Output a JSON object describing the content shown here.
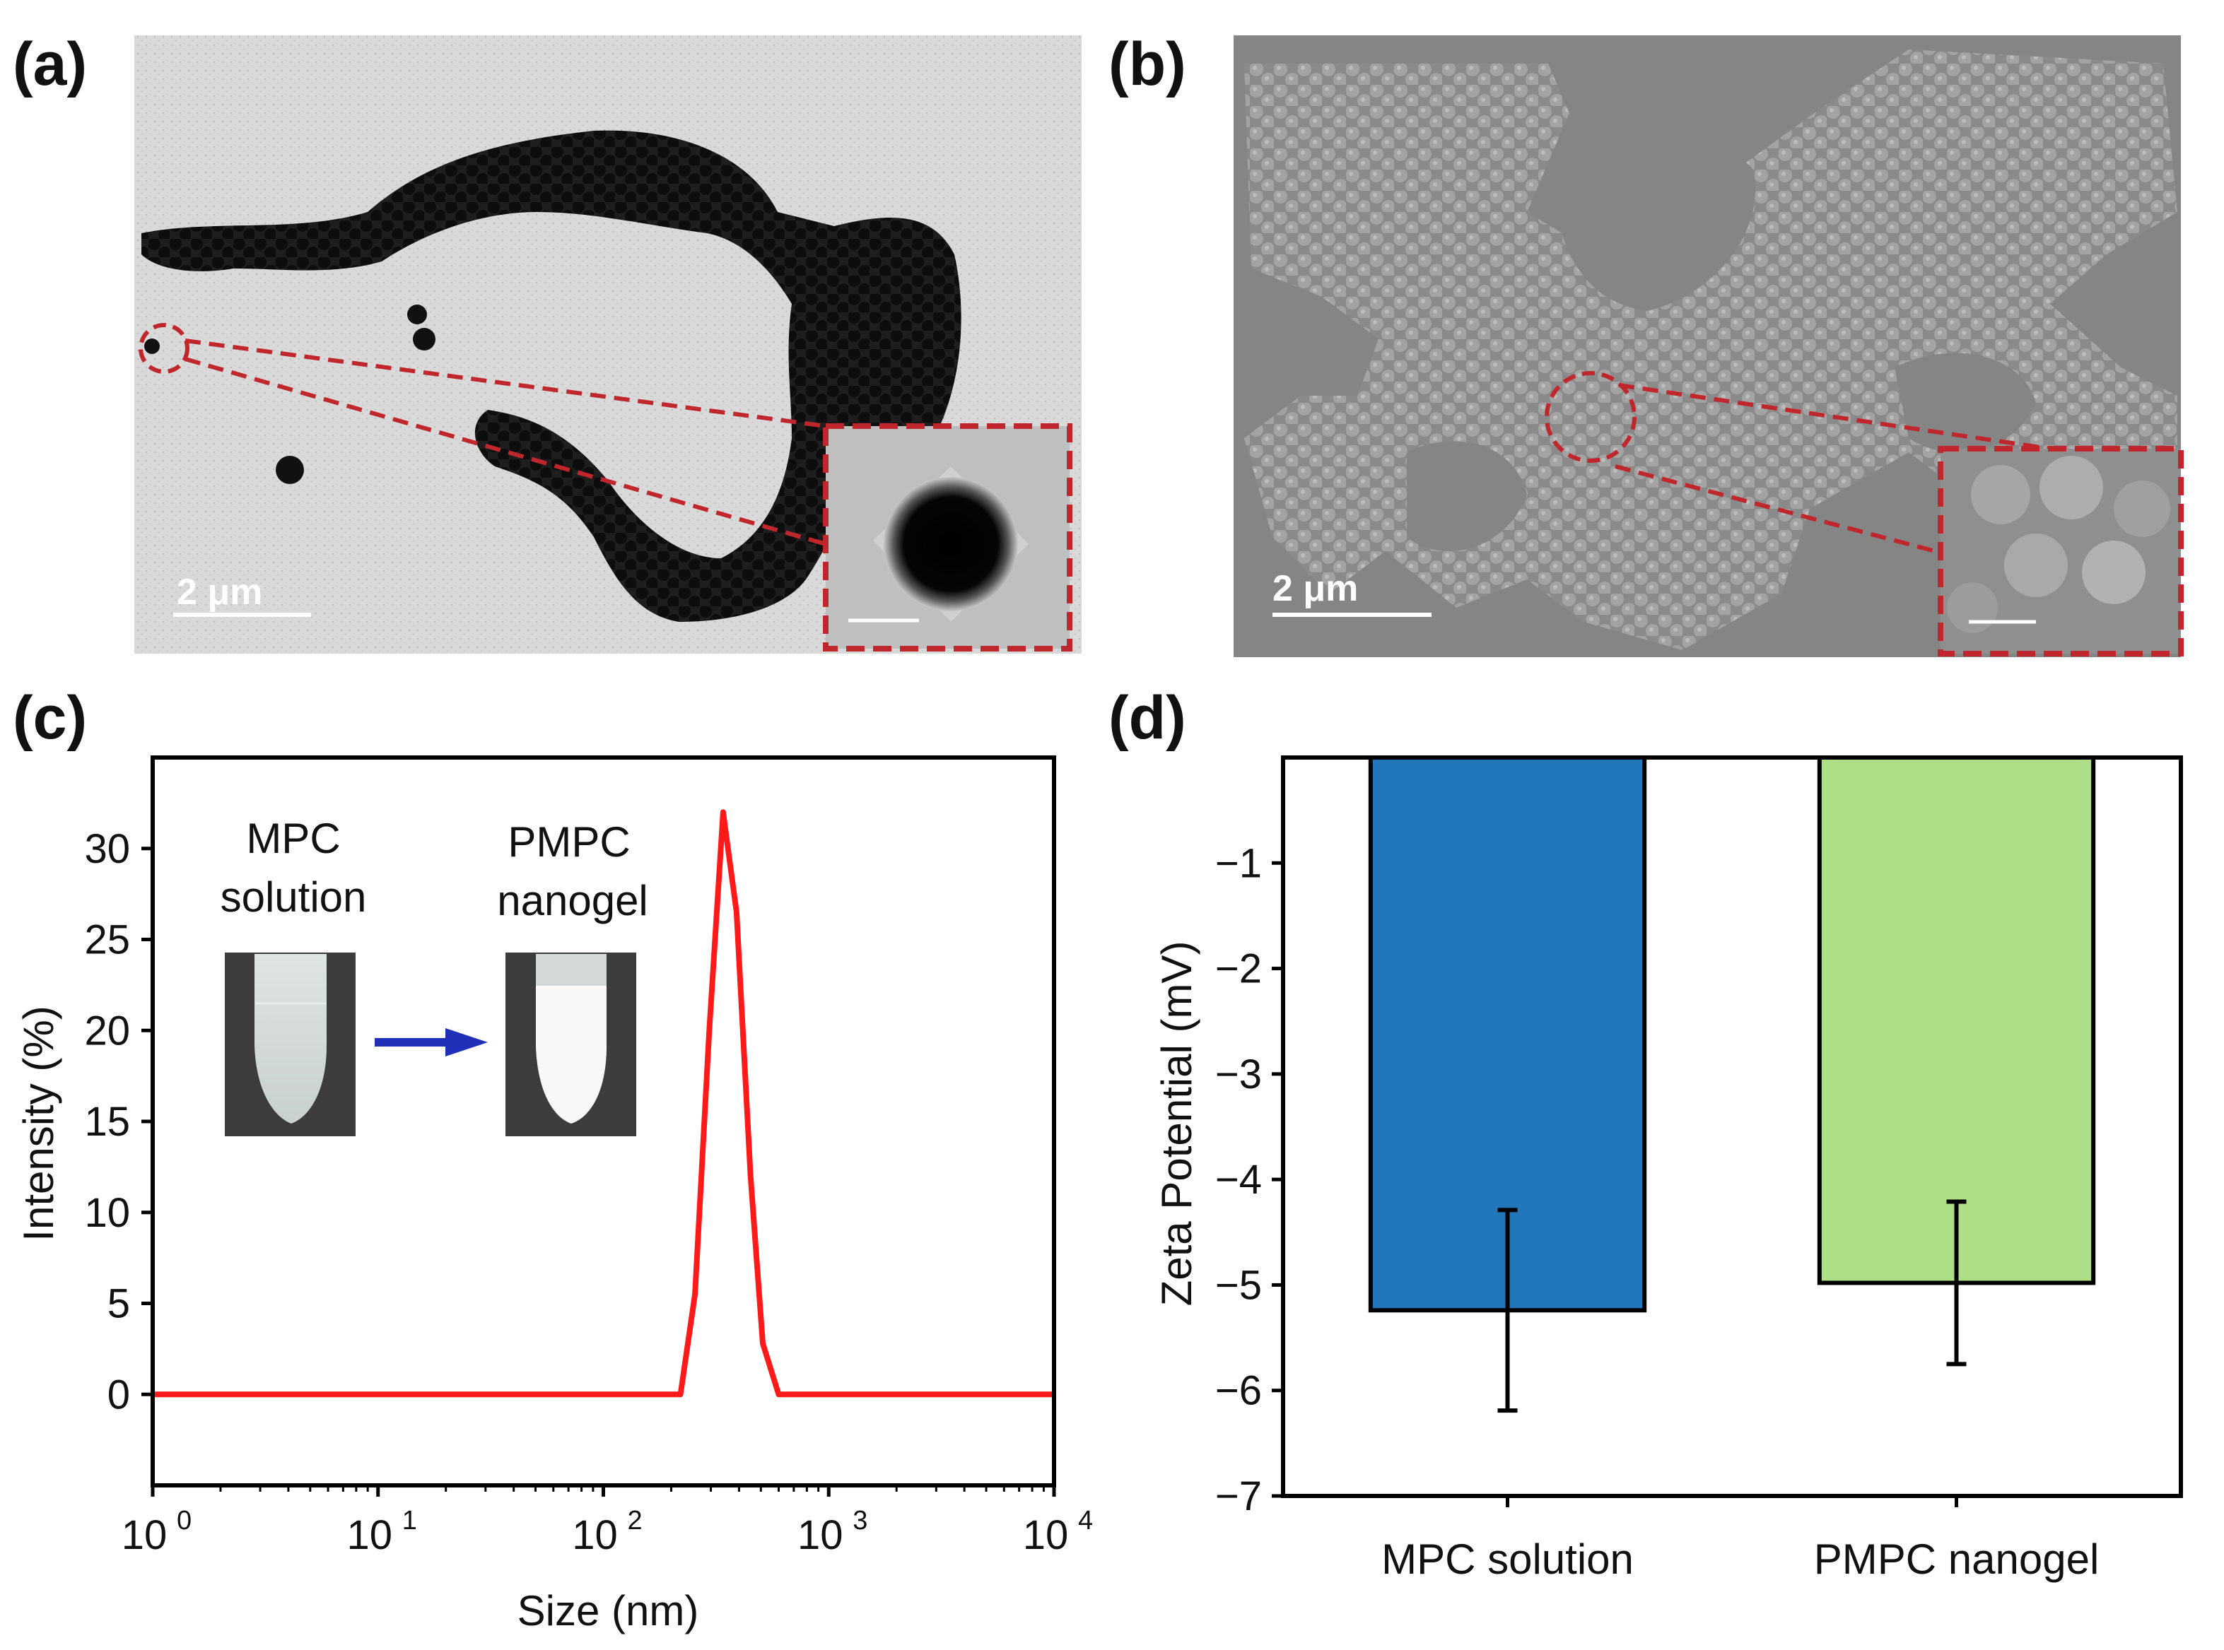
{
  "panels": {
    "a": {
      "label": "(a)",
      "scale_bar": "2 μm"
    },
    "b": {
      "label": "(b)",
      "scale_bar": "2 μm"
    },
    "c": {
      "label": "(c)"
    },
    "d": {
      "label": "(d)"
    }
  },
  "inset": {
    "before_label_line1": "MPC",
    "before_label_line2": "solution",
    "after_label_line1": "PMPC",
    "after_label_line2": "nanogel"
  },
  "colors": {
    "dls_line": "#ff1a1a",
    "bar_mpc": "#2277bb",
    "bar_pmpc": "#addf86",
    "callout": "#c0272d",
    "arrow": "#1f2fb8"
  },
  "chart_data": [
    {
      "type": "line",
      "panel": "c",
      "title": "",
      "xlabel": "Size (nm)",
      "ylabel": "Intensity (%)",
      "xscale": "log",
      "xlim": [
        1,
        10000
      ],
      "ylim": [
        -5,
        35
      ],
      "x_ticks": [
        1,
        10,
        100,
        1000,
        10000
      ],
      "x_tick_labels": [
        {
          "base": "10",
          "exp": "0"
        },
        {
          "base": "10",
          "exp": "1"
        },
        {
          "base": "10",
          "exp": "2"
        },
        {
          "base": "10",
          "exp": "3"
        },
        {
          "base": "10",
          "exp": "4"
        }
      ],
      "y_ticks": [
        0,
        5,
        10,
        15,
        20,
        25,
        30
      ],
      "y_tick_labels": [
        "0",
        "5",
        "10",
        "15",
        "20",
        "25",
        "30"
      ],
      "series": [
        {
          "name": "PMPC nanogel",
          "x": [
            1,
            220,
            255,
            295,
            340,
            390,
            450,
            510,
            600,
            10000
          ],
          "y": [
            0,
            0,
            5.5,
            20,
            32,
            26.5,
            12,
            2.8,
            0,
            0
          ]
        }
      ]
    },
    {
      "type": "bar",
      "panel": "d",
      "title": "",
      "xlabel": "",
      "ylabel": "Zeta Potential (mV)",
      "ylim": [
        -7,
        0
      ],
      "y_ticks": [
        -1,
        -2,
        -3,
        -4,
        -5,
        -6,
        -7
      ],
      "y_tick_labels": [
        "−1",
        "−2",
        "−3",
        "−4",
        "−5",
        "−6",
        "−7"
      ],
      "categories": [
        "MPC solution",
        "PMPC nanogel"
      ],
      "values": [
        -5.24,
        -4.98
      ],
      "errors": [
        0.95,
        0.77
      ]
    }
  ]
}
